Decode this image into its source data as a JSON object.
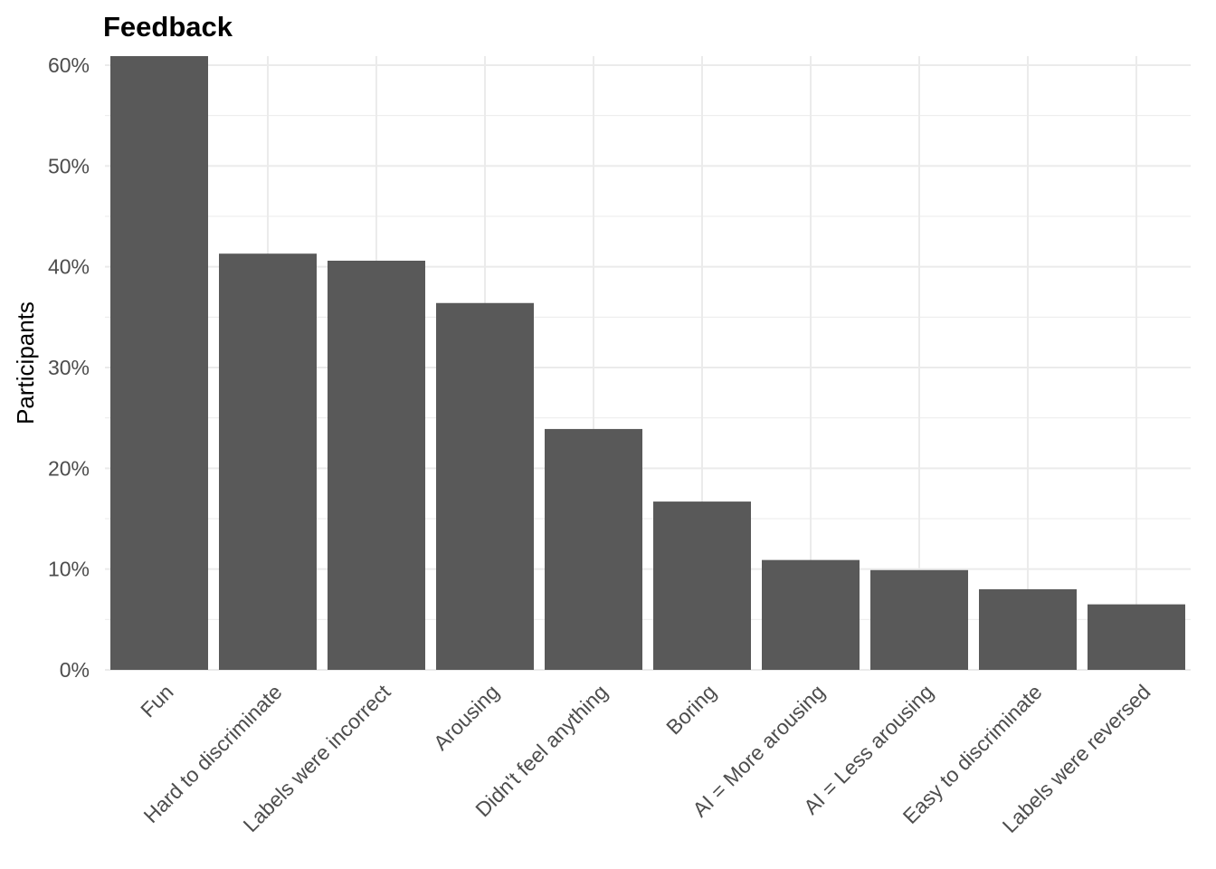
{
  "chart_data": {
    "type": "bar",
    "title": "Feedback",
    "xlabel": "",
    "ylabel": "Participants",
    "categories": [
      "Fun",
      "Hard to discriminate",
      "Labels were incorrect",
      "Arousing",
      "Didn't feel anything",
      "Boring",
      "AI = More arousing",
      "AI = Less arousing",
      "Easy to discriminate",
      "Labels were reversed"
    ],
    "values": [
      60.9,
      41.3,
      40.6,
      36.4,
      23.9,
      16.7,
      10.9,
      9.9,
      8.0,
      6.5
    ],
    "ylim": [
      0,
      60.9
    ],
    "yticks": [
      0,
      10,
      20,
      30,
      40,
      50,
      60
    ],
    "ytick_labels": [
      "0%",
      "10%",
      "20%",
      "30%",
      "40%",
      "50%",
      "60%"
    ],
    "grid": true,
    "legend": "none",
    "bar_color": "#595959",
    "grid_color": "#ebebeb",
    "background": "#ffffff"
  }
}
